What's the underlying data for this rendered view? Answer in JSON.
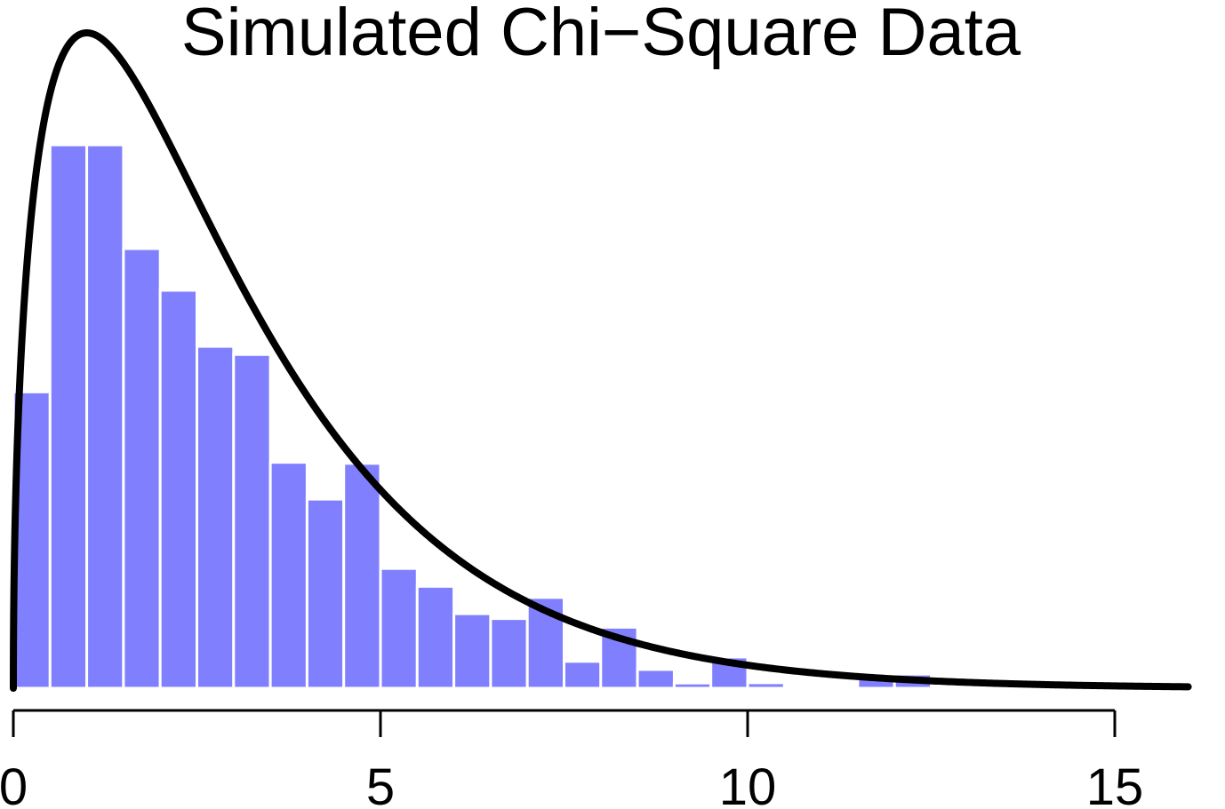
{
  "chart_data": {
    "type": "bar",
    "title": "Simulated Chi−Square Data",
    "xlabel": "",
    "ylabel": "",
    "bin_width": 0.5,
    "bin_starts": [
      0,
      0.5,
      1,
      1.5,
      2,
      2.5,
      3,
      3.5,
      4,
      4.5,
      5,
      5.5,
      6,
      6.5,
      7,
      7.5,
      8,
      8.5,
      9,
      9.5,
      10,
      10.5,
      11,
      11.5,
      12,
      12.5,
      13,
      13.5,
      14,
      14.5,
      15,
      15.5,
      16
    ],
    "density": [
      0.1094,
      0.2006,
      0.2006,
      0.1623,
      0.1469,
      0.1262,
      0.1232,
      0.0834,
      0.0698,
      0.083,
      0.0442,
      0.0376,
      0.0275,
      0.0257,
      0.0335,
      0.0099,
      0.0225,
      0.0069,
      0.0019,
      0.0115,
      0.002,
      0,
      0,
      0.0052,
      0.0052,
      0,
      0,
      0,
      0,
      0,
      0,
      0,
      0.0004
    ],
    "bar_color": "#8080ff",
    "curve": {
      "distribution": "chi-square",
      "df": 3,
      "color": "#000000",
      "x_range": [
        0,
        16
      ]
    },
    "xlim": [
      0,
      16.5
    ],
    "ylim": [
      0,
      0.2006
    ],
    "x_ticks": [
      0,
      5,
      10,
      15
    ],
    "x_tick_labels": [
      "0",
      "5",
      "10",
      "15"
    ],
    "grid": false,
    "legend": "none"
  }
}
